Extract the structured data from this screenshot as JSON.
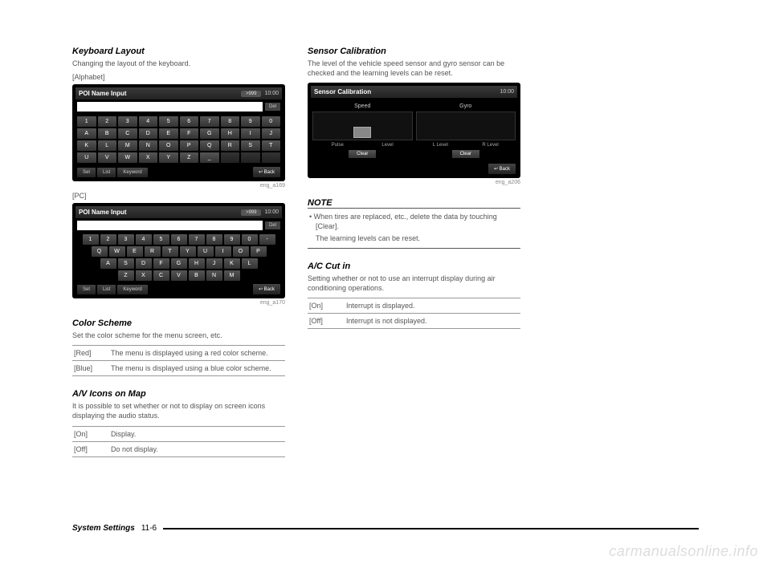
{
  "left": {
    "keyboardLayout": {
      "title": "Keyboard Layout",
      "body": "Changing the layout of the keyboard.",
      "alphabet": {
        "label": "[Alphabet]",
        "header_title": "POI Name Input",
        "header_pill": ">999",
        "time": "10:00",
        "del": "Del",
        "rows": [
          [
            "1",
            "2",
            "3",
            "4",
            "5",
            "6",
            "7",
            "8",
            "9",
            "0"
          ],
          [
            "A",
            "B",
            "C",
            "D",
            "E",
            "F",
            "G",
            "H",
            "I",
            "J"
          ],
          [
            "K",
            "L",
            "M",
            "N",
            "O",
            "P",
            "Q",
            "R",
            "S",
            "T"
          ],
          [
            "U",
            "V",
            "W",
            "X",
            "Y",
            "Z",
            "_",
            "",
            "",
            ""
          ]
        ],
        "bottom": [
          "Set",
          "List",
          "Keyword"
        ],
        "back": "↩ Back",
        "ref": "eng_a169"
      },
      "pc": {
        "label": "[PC]",
        "header_title": "POI Name Input",
        "header_pill": ">999",
        "time": "10:00",
        "del": "Del",
        "rows": [
          [
            "1",
            "2",
            "3",
            "4",
            "5",
            "6",
            "7",
            "8",
            "9",
            "0",
            "-"
          ],
          [
            "Q",
            "W",
            "E",
            "R",
            "T",
            "Y",
            "U",
            "I",
            "O",
            "P"
          ],
          [
            "A",
            "S",
            "D",
            "F",
            "G",
            "H",
            "J",
            "K",
            "L"
          ],
          [
            "Z",
            "X",
            "C",
            "V",
            "B",
            "N",
            "M"
          ]
        ],
        "bottom": [
          "Set",
          "List",
          "Keyword"
        ],
        "back": "↩ Back",
        "ref": "eng_a170"
      }
    },
    "colorScheme": {
      "title": "Color Scheme",
      "body": "Set the color scheme for the menu screen, etc.",
      "rows": [
        {
          "k": "[Red]",
          "v": "The menu is displayed using a red color scheme."
        },
        {
          "k": "[Blue]",
          "v": "The menu is displayed using a blue color scheme."
        }
      ]
    },
    "avIcons": {
      "title": "A/V Icons on Map",
      "body": "It is possible to set whether or not to display on screen icons displaying the audio status.",
      "rows": [
        {
          "k": "[On]",
          "v": "Display."
        },
        {
          "k": "[Off]",
          "v": "Do not display."
        }
      ]
    }
  },
  "right": {
    "sensor": {
      "title": "Sensor Calibration",
      "body": "The level of the vehicle speed sensor and gyro sensor can be checked and the learning levels can be reset.",
      "device": {
        "header_title": "Sensor Calibration",
        "time": "10:00",
        "speed": "Speed",
        "gyro": "Gyro",
        "pulse": "Pulse",
        "level": "Level",
        "llevel": "L Level",
        "rlevel": "R Level",
        "clear": "Clear",
        "back": "↩ Back",
        "ref": "eng_a206"
      }
    },
    "note": {
      "title": "NOTE",
      "bullet": "• When tires are replaced, etc., delete the data by touching [Clear].",
      "sub": "The learning levels can be reset."
    },
    "accut": {
      "title": "A/C Cut in",
      "body": "Setting whether or not to use an interrupt display during air conditioning operations.",
      "rows": [
        {
          "k": "[On]",
          "v": "Interrupt is displayed."
        },
        {
          "k": "[Off]",
          "v": "Interrupt is not displayed."
        }
      ]
    }
  },
  "footer": {
    "title": "System Settings",
    "page": "11-6"
  },
  "watermark": "carmanualsonline.info"
}
